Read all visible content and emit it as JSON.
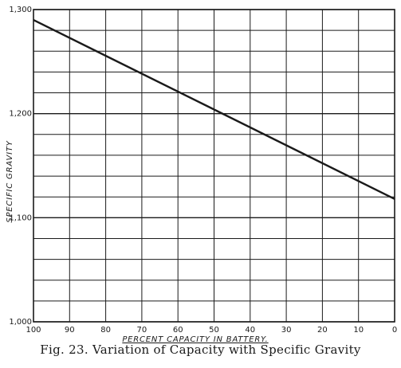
{
  "chart_data": {
    "type": "line",
    "xlabel": "PERCENT CAPACITY IN BATTERY.",
    "ylabel": "SPECIFIC GRAVITY",
    "x_ticks": [
      "100",
      "90",
      "80",
      "70",
      "60",
      "50",
      "40",
      "30",
      "20",
      "10",
      "0"
    ],
    "y_ticks": [
      {
        "value": 1000,
        "label": "1,000"
      },
      {
        "value": 1100,
        "label": "1,100"
      },
      {
        "value": 1200,
        "label": "1,200"
      },
      {
        "value": 1300,
        "label": "1,300"
      }
    ],
    "xlim": [
      100,
      0
    ],
    "ylim": [
      1000,
      1300
    ],
    "grid": true,
    "series": [
      {
        "x": [
          100,
          0
        ],
        "y": [
          1290,
          1118
        ]
      }
    ]
  },
  "caption": "Fig. 23.  Variation of Capacity with Specific Gravity"
}
